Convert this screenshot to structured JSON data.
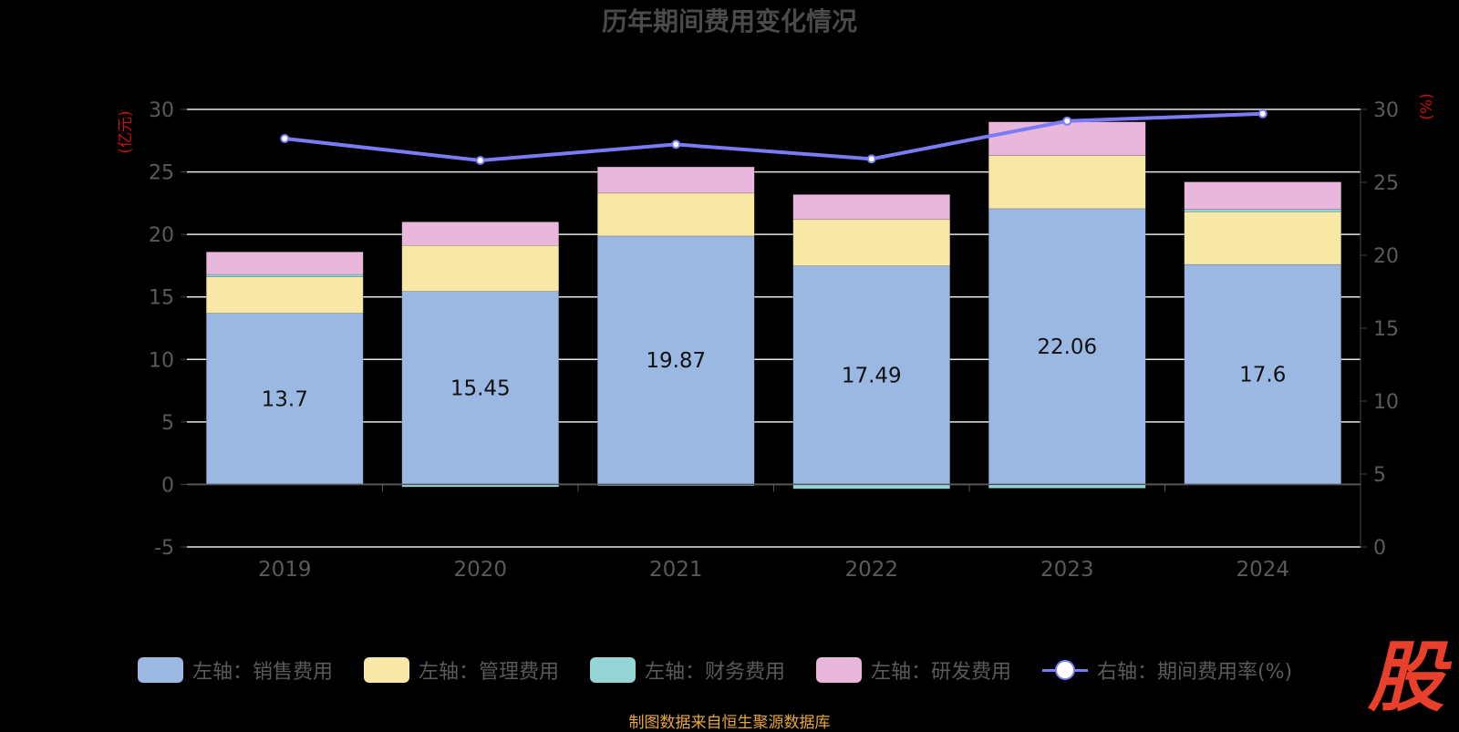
{
  "chart_data": {
    "type": "bar",
    "title": "历年期间费用变化情况",
    "categories": [
      "2019",
      "2020",
      "2021",
      "2022",
      "2023",
      "2024"
    ],
    "left_axis": {
      "unit": "(亿元)",
      "ylim": [
        -5,
        30
      ],
      "ticks": [
        -5,
        0,
        5,
        10,
        15,
        20,
        25,
        30
      ]
    },
    "right_axis": {
      "unit": "(%)",
      "ylim": [
        0,
        30
      ],
      "ticks": [
        0,
        5,
        10,
        15,
        20,
        25,
        30
      ]
    },
    "series": [
      {
        "name": "左轴：销售费用",
        "type": "bar",
        "stack": true,
        "color": "#9ab8e2",
        "values": [
          13.7,
          15.45,
          19.87,
          17.49,
          22.06,
          17.6
        ],
        "labels": [
          "13.7",
          "15.45",
          "19.87",
          "17.49",
          "22.06",
          "17.6"
        ]
      },
      {
        "name": "左轴：管理费用",
        "type": "bar",
        "stack": true,
        "color": "#f8e8a6",
        "values": [
          2.9,
          3.65,
          3.43,
          3.7,
          4.24,
          4.2
        ]
      },
      {
        "name": "左轴：财务费用",
        "type": "bar",
        "stack": true,
        "color": "#95d5d6",
        "values": [
          0.2,
          -0.2,
          -0.1,
          -0.35,
          -0.3,
          0.2
        ]
      },
      {
        "name": "左轴：研发费用",
        "type": "bar",
        "stack": true,
        "color": "#e9b7db",
        "values": [
          1.8,
          1.9,
          2.1,
          2.0,
          2.7,
          2.2
        ]
      },
      {
        "name": "右轴：期间费用率(%)",
        "type": "line",
        "axis": "right",
        "color": "#7b7bf5",
        "values": [
          28.0,
          26.5,
          27.6,
          26.6,
          29.2,
          29.7
        ]
      }
    ],
    "grid": true,
    "legend_position": "bottom"
  },
  "footer": "制图数据来自恒生聚源数据库",
  "logo_text": "股"
}
